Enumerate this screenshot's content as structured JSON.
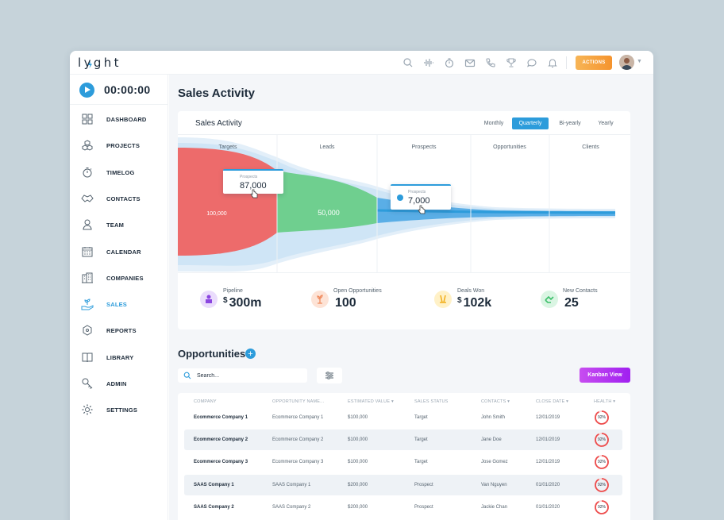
{
  "app": {
    "logo": "lyght"
  },
  "topbar": {
    "icons": [
      "search-icon",
      "waveform-icon",
      "timer-icon",
      "mail-icon",
      "phone-icon",
      "trophy-icon",
      "chat-icon",
      "bell-icon"
    ],
    "actions_label": "ACTIONS"
  },
  "timer": {
    "value": "00:00:00"
  },
  "sidebar": {
    "items": [
      {
        "label": "DASHBOARD",
        "icon": "grid-icon"
      },
      {
        "label": "PROJECTS",
        "icon": "cubes-icon"
      },
      {
        "label": "TIMELOG",
        "icon": "stopwatch-icon"
      },
      {
        "label": "CONTACTS",
        "icon": "handshake-icon"
      },
      {
        "label": "TEAM",
        "icon": "person-icon"
      },
      {
        "label": "CALENDAR",
        "icon": "calendar-icon"
      },
      {
        "label": "COMPANIES",
        "icon": "building-icon"
      },
      {
        "label": "SALES",
        "icon": "plant-hand-icon",
        "active": true
      },
      {
        "label": "REPORTS",
        "icon": "network-icon"
      },
      {
        "label": "LIBRARY",
        "icon": "book-icon"
      },
      {
        "label": "ADMIN",
        "icon": "key-icon"
      },
      {
        "label": "SETTINGS",
        "icon": "gear-icon"
      }
    ]
  },
  "page": {
    "title": "Sales Activity"
  },
  "sales_card": {
    "title": "Sales Activity",
    "periods": [
      "Monthly",
      "Quarterly",
      "Bi-yearly",
      "Yearly"
    ],
    "selected_period": "Quarterly",
    "stages": [
      "Targets",
      "Leads",
      "Prospects",
      "Opportunities",
      "Clients"
    ],
    "segment_values": [
      "100,000",
      "50,000"
    ],
    "tooltip1": {
      "label": "Prospects",
      "value": "87,000"
    },
    "tooltip2": {
      "label": "Prospects",
      "value": "7,000"
    },
    "colors": {
      "targets": "#ed6b6b",
      "leads": "#6fcf8f",
      "band": "#d3e8f7",
      "accent": "#2d9cdb"
    }
  },
  "stats": [
    {
      "label": "Pipeline",
      "prefix": "$",
      "value": "300m",
      "icon": "pipeline-icon",
      "color": "#eadcfc"
    },
    {
      "label": "Open Opportunities",
      "prefix": "",
      "value": "100",
      "icon": "sprout-icon",
      "color": "#fde3d6"
    },
    {
      "label": "Deals Won",
      "prefix": "$",
      "value": "102k",
      "icon": "handshake-coins-icon",
      "color": "#fff1c7"
    },
    {
      "label": "New Contacts",
      "prefix": "",
      "value": "25",
      "icon": "contact-icon",
      "color": "#daf5e3"
    }
  ],
  "opportunities": {
    "title": "Opportunities",
    "search_placeholder": "Search...",
    "kanban_label": "Kanban View",
    "columns": [
      "COMPANY",
      "OPPORTUNITY NAME...",
      "ESTIMATED VALUE ▾",
      "SALES STATUS",
      "CONTACTS ▾",
      "CLOSE DATE ▾",
      "HEALTH ▾"
    ],
    "rows": [
      [
        "Ecommerce Company 1",
        "Ecommerce Company 1",
        "$100,000",
        "Target",
        "John Smith",
        "12/01/2019",
        "92%"
      ],
      [
        "Ecommerce Company 2",
        "Ecommerce Company 2",
        "$100,000",
        "Target",
        "Jane Doe",
        "12/01/2019",
        "92%"
      ],
      [
        "Ecommerce Company 3",
        "Ecommerce Company 3",
        "$100,000",
        "Target",
        "Jose Gomez",
        "12/01/2019",
        "92%"
      ],
      [
        "SAAS Company 1",
        "SAAS Company 1",
        "$200,000",
        "Prospect",
        "Van Nguyen",
        "01/01/2020",
        "92%"
      ],
      [
        "SAAS Company 2",
        "SAAS Company 2",
        "$200,000",
        "Prospect",
        "Jackie Chan",
        "01/01/2020",
        "92%"
      ]
    ],
    "health_values": [
      0.92,
      0.92,
      0.92,
      0.92,
      0.92
    ]
  }
}
